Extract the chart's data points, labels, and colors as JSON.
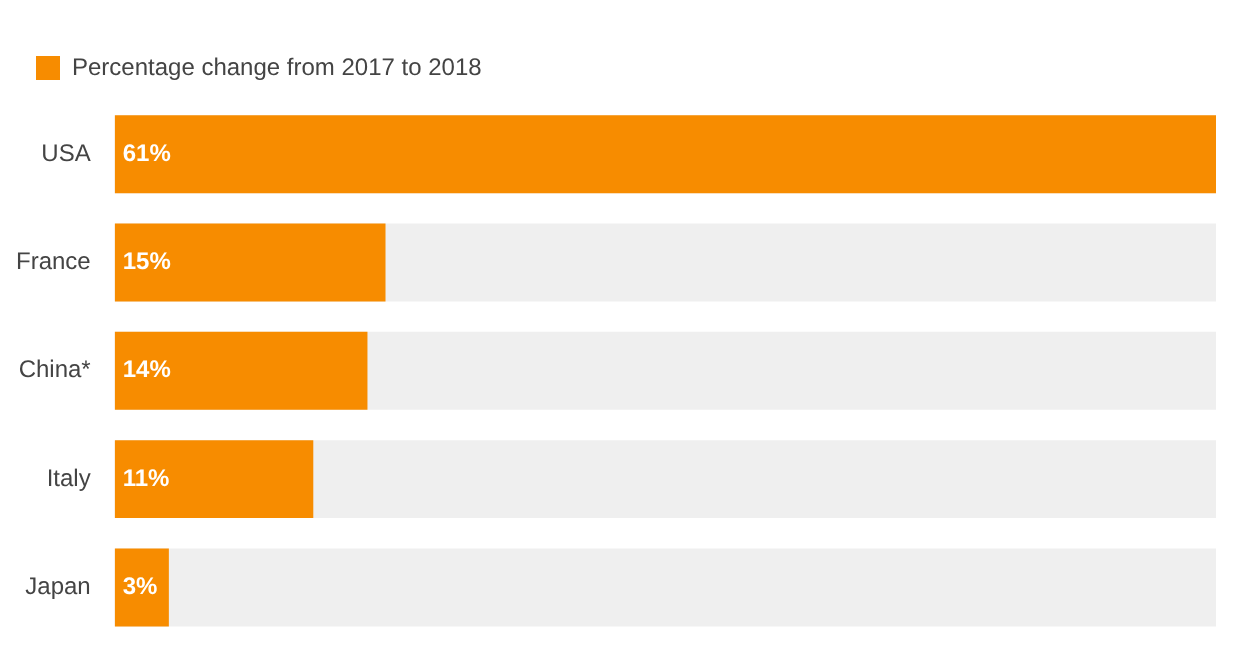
{
  "chart_data": {
    "type": "bar",
    "orientation": "horizontal",
    "categories": [
      "USA",
      "France",
      "China*",
      "Italy",
      "Japan"
    ],
    "series": [
      {
        "name": "Percentage change from 2017 to 2018",
        "color": "#f78c00",
        "values": [
          61,
          15,
          14,
          11,
          3
        ],
        "value_labels": [
          "61%",
          "15%",
          "14%",
          "11%",
          "3%"
        ]
      }
    ],
    "legend": "top left",
    "tick_labels": "y"
  }
}
